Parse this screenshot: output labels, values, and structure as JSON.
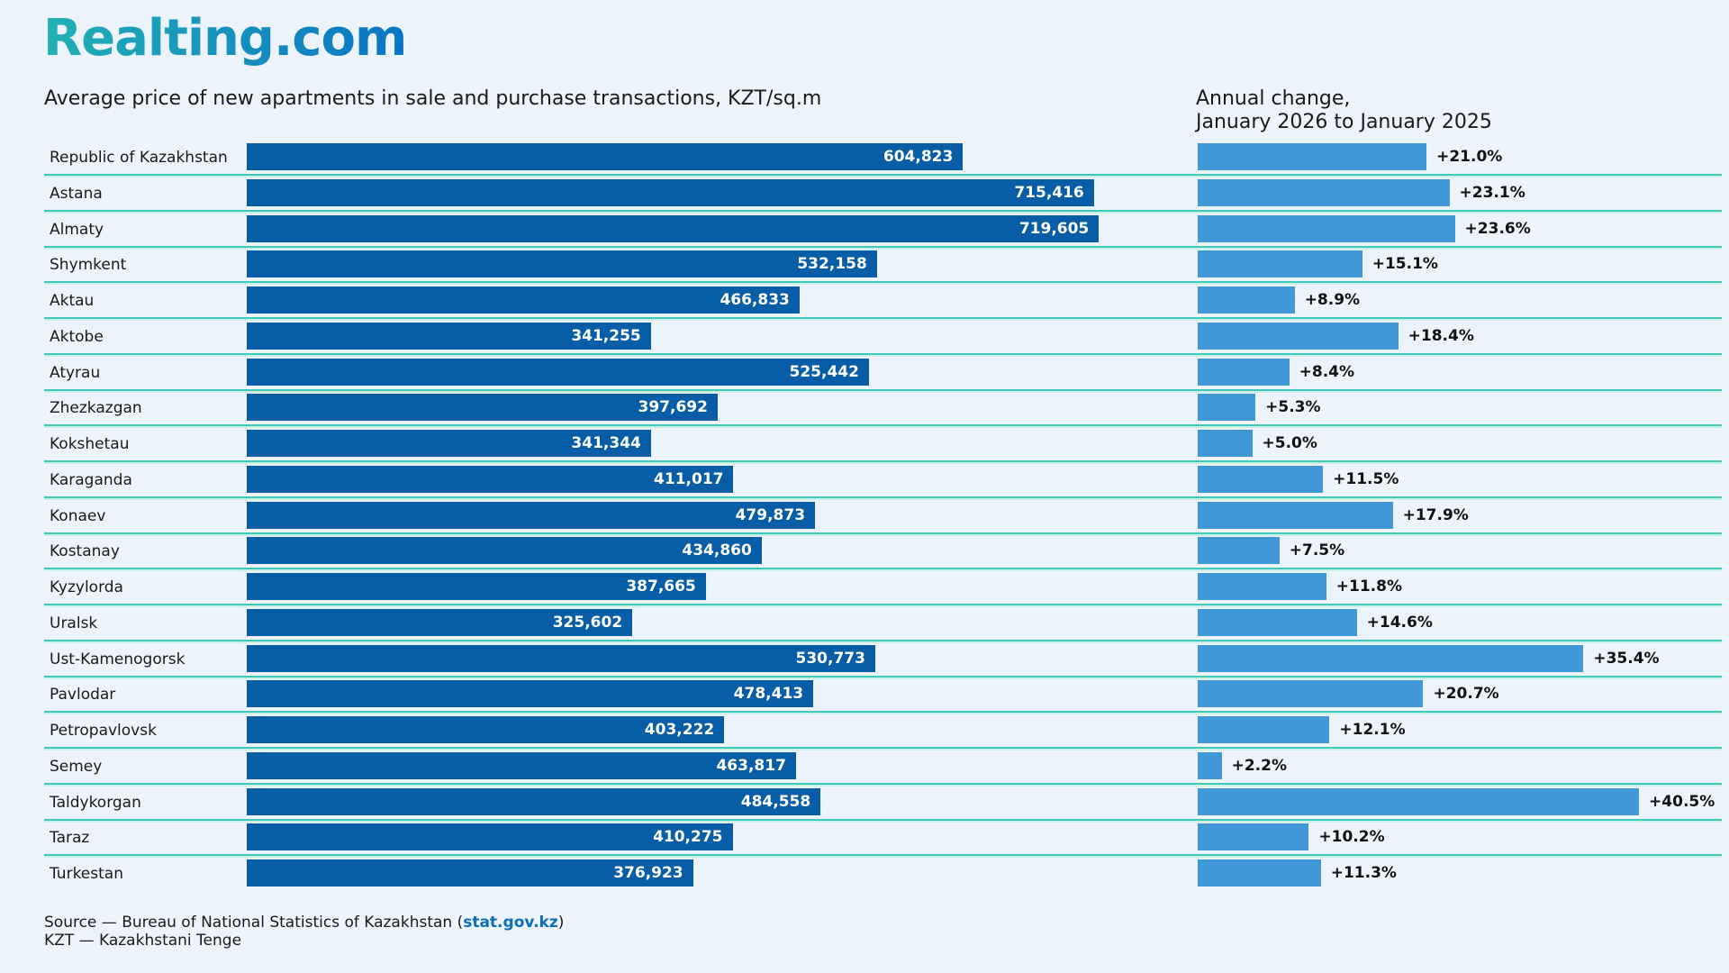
{
  "logo": "Realting.com",
  "colors": {
    "price_bar": "#075ea6",
    "change_bar": "#4198d7",
    "separator": "#3fcab7",
    "background": "#edf3fa"
  },
  "chart_data": [
    {
      "type": "bar",
      "orientation": "horizontal",
      "title": "Average price of new apartments in sale and purchase transactions, KZT/sq.m",
      "categories": [
        "Republic of Kazakhstan",
        "Astana",
        "Almaty",
        "Shymkent",
        "Aktau",
        "Aktobe",
        "Atyrau",
        "Zhezkazgan",
        "Kokshetau",
        "Karaganda",
        "Konaev",
        "Kostanay",
        "Kyzylorda",
        "Uralsk",
        "Ust-Kamenogorsk",
        "Pavlodar",
        "Petropavlovsk",
        "Semey",
        "Taldykorgan",
        "Taraz",
        "Turkestan"
      ],
      "values": [
        604823,
        715416,
        719605,
        532158,
        466833,
        341255,
        525442,
        397692,
        341344,
        411017,
        479873,
        434860,
        387665,
        325602,
        530773,
        478413,
        403222,
        463817,
        484558,
        410275,
        376923
      ],
      "labels": [
        "604,823",
        "715,416",
        "719,605",
        "532,158",
        "466,833",
        "341,255",
        "525,442",
        "397,692",
        "341,344",
        "411,017",
        "479,873",
        "434,860",
        "387,665",
        "325,602",
        "530,773",
        "478,413",
        "403,222",
        "463,817",
        "484,558",
        "410,275",
        "376,923"
      ],
      "xlim": [
        0,
        800000
      ],
      "grid": false
    },
    {
      "type": "bar",
      "orientation": "horizontal",
      "title_line1": "Annual change,",
      "title_line2": "January 2026 to January 2025",
      "values": [
        21.0,
        23.1,
        23.6,
        15.1,
        8.9,
        18.4,
        8.4,
        5.3,
        5.0,
        11.5,
        17.9,
        7.5,
        11.8,
        14.6,
        35.4,
        20.7,
        12.1,
        2.2,
        40.5,
        10.2,
        11.3
      ],
      "labels": [
        "+21.0%",
        "+23.1%",
        "+23.6%",
        "+15.1%",
        "+8.9%",
        "+18.4%",
        "+8.4%",
        "+5.3%",
        "+5.0%",
        "+11.5%",
        "+17.9%",
        "+7.5%",
        "+11.8%",
        "+14.6%",
        "+35.4%",
        "+20.7%",
        "+12.1%",
        "+2.2%",
        "+40.5%",
        "+10.2%",
        "+11.3%"
      ],
      "xlim": [
        0,
        48
      ],
      "grid": false
    }
  ],
  "footer": {
    "source_prefix": "Source — Bureau of National Statistics of Kazakhstan (",
    "source_link": "stat.gov.kz",
    "source_suffix": ")",
    "note": "KZT — Kazakhstani Tenge"
  }
}
